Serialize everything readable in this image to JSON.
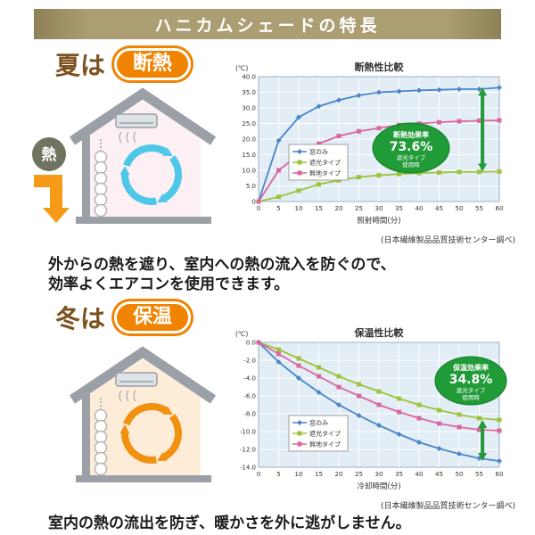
{
  "header": {
    "title": "ハニカムシェードの特長"
  },
  "colors": {
    "header_bg": "#ab9e72",
    "badge_orange": "#f08300",
    "season_text_brown": "#7c521f",
    "effect_green": "#219a38",
    "series_blue": "#4a86c8",
    "series_green": "#9dc33b",
    "series_pink": "#d9679e"
  },
  "summer": {
    "season_label": "夏は",
    "badge_label": "断熱",
    "heat_label": "熱",
    "description_lines": [
      "外からの熱を遮り、室内への熱の流入を防ぐので、",
      "効率よくエアコンを使用できます。"
    ]
  },
  "winter": {
    "season_label": "冬は",
    "badge_label": "保温",
    "description_lines": [
      "室内の熱の流出を防ぎ、暖かさを外に逃がしません。"
    ]
  },
  "chart_data": [
    {
      "type": "line",
      "title": "断熱性比較",
      "unit_label": "(℃)",
      "xlabel": "照射時間(分)",
      "x": [
        0,
        5,
        10,
        15,
        20,
        25,
        30,
        35,
        40,
        45,
        50,
        55,
        60
      ],
      "ylim": [
        0,
        40
      ],
      "yticks": [
        0,
        5,
        10,
        15,
        20,
        25,
        30,
        35,
        40
      ],
      "ytick_labels": [
        "0",
        "5.0",
        "10.0",
        "15.0",
        "20.0",
        "25.0",
        "30.0",
        "35.0",
        "40.0"
      ],
      "grid": true,
      "legend_position": "center-left",
      "series": [
        {
          "name": "窓のみ",
          "color": "#4a86c8",
          "marker": "diamond",
          "values": [
            0,
            19.5,
            27.0,
            30.5,
            32.5,
            34.0,
            35.0,
            35.3,
            35.6,
            35.8,
            36.0,
            36.0,
            36.5
          ]
        },
        {
          "name": "遮光タイプ",
          "color": "#9dc33b",
          "marker": "square",
          "values": [
            0,
            1.5,
            3.5,
            5.5,
            6.8,
            7.8,
            8.4,
            8.8,
            9.1,
            9.3,
            9.5,
            9.5,
            9.6
          ]
        },
        {
          "name": "無地タイプ",
          "color": "#d9679e",
          "marker": "square",
          "values": [
            0,
            10.0,
            15.0,
            18.5,
            21.0,
            22.5,
            23.5,
            24.5,
            25.0,
            25.4,
            25.7,
            25.9,
            26.0
          ]
        }
      ],
      "annotation": {
        "label": "断熱効果率",
        "value": "73.6%",
        "note_lines": [
          "遮光タイプ",
          "使用時"
        ],
        "arrow_between": [
          "窓のみ",
          "遮光タイプ"
        ]
      },
      "source": "(日本繊維製品品質技術センター調べ)"
    },
    {
      "type": "line",
      "title": "保温性比較",
      "unit_label": "(℃)",
      "xlabel": "冷却時間(分)",
      "x": [
        0,
        5,
        10,
        15,
        20,
        25,
        30,
        35,
        40,
        45,
        50,
        55,
        60
      ],
      "ylim": [
        -14,
        0
      ],
      "yticks": [
        0,
        -2,
        -4,
        -6,
        -8,
        -10,
        -12,
        -14
      ],
      "ytick_labels": [
        "0.0",
        "-2.0",
        "-4.0",
        "-6.0",
        "-8.0",
        "-10.0",
        "-12.0",
        "-14.0"
      ],
      "grid": true,
      "legend_position": "bottom-left",
      "series": [
        {
          "name": "窓のみ",
          "color": "#4a86c8",
          "marker": "diamond",
          "values": [
            0,
            -2.2,
            -4.0,
            -5.6,
            -7.0,
            -8.2,
            -9.3,
            -10.3,
            -11.2,
            -11.9,
            -12.5,
            -13.0,
            -13.3
          ]
        },
        {
          "name": "遮光タイプ",
          "color": "#9dc33b",
          "marker": "square",
          "values": [
            0,
            -0.8,
            -1.8,
            -2.8,
            -3.8,
            -4.7,
            -5.5,
            -6.3,
            -7.0,
            -7.6,
            -8.1,
            -8.5,
            -8.7
          ]
        },
        {
          "name": "無地タイプ",
          "color": "#d9679e",
          "marker": "square",
          "values": [
            0,
            -1.3,
            -2.6,
            -3.8,
            -5.0,
            -6.0,
            -7.0,
            -7.8,
            -8.5,
            -9.1,
            -9.5,
            -9.8,
            -9.9
          ]
        }
      ],
      "annotation": {
        "label": "保温効果率",
        "value": "34.8%",
        "note_lines": [
          "遮光タイプ",
          "使用時"
        ],
        "arrow_between": [
          "窓のみ",
          "遮光タイプ"
        ]
      },
      "source": "(日本繊維製品品質技術センター調べ)"
    }
  ]
}
